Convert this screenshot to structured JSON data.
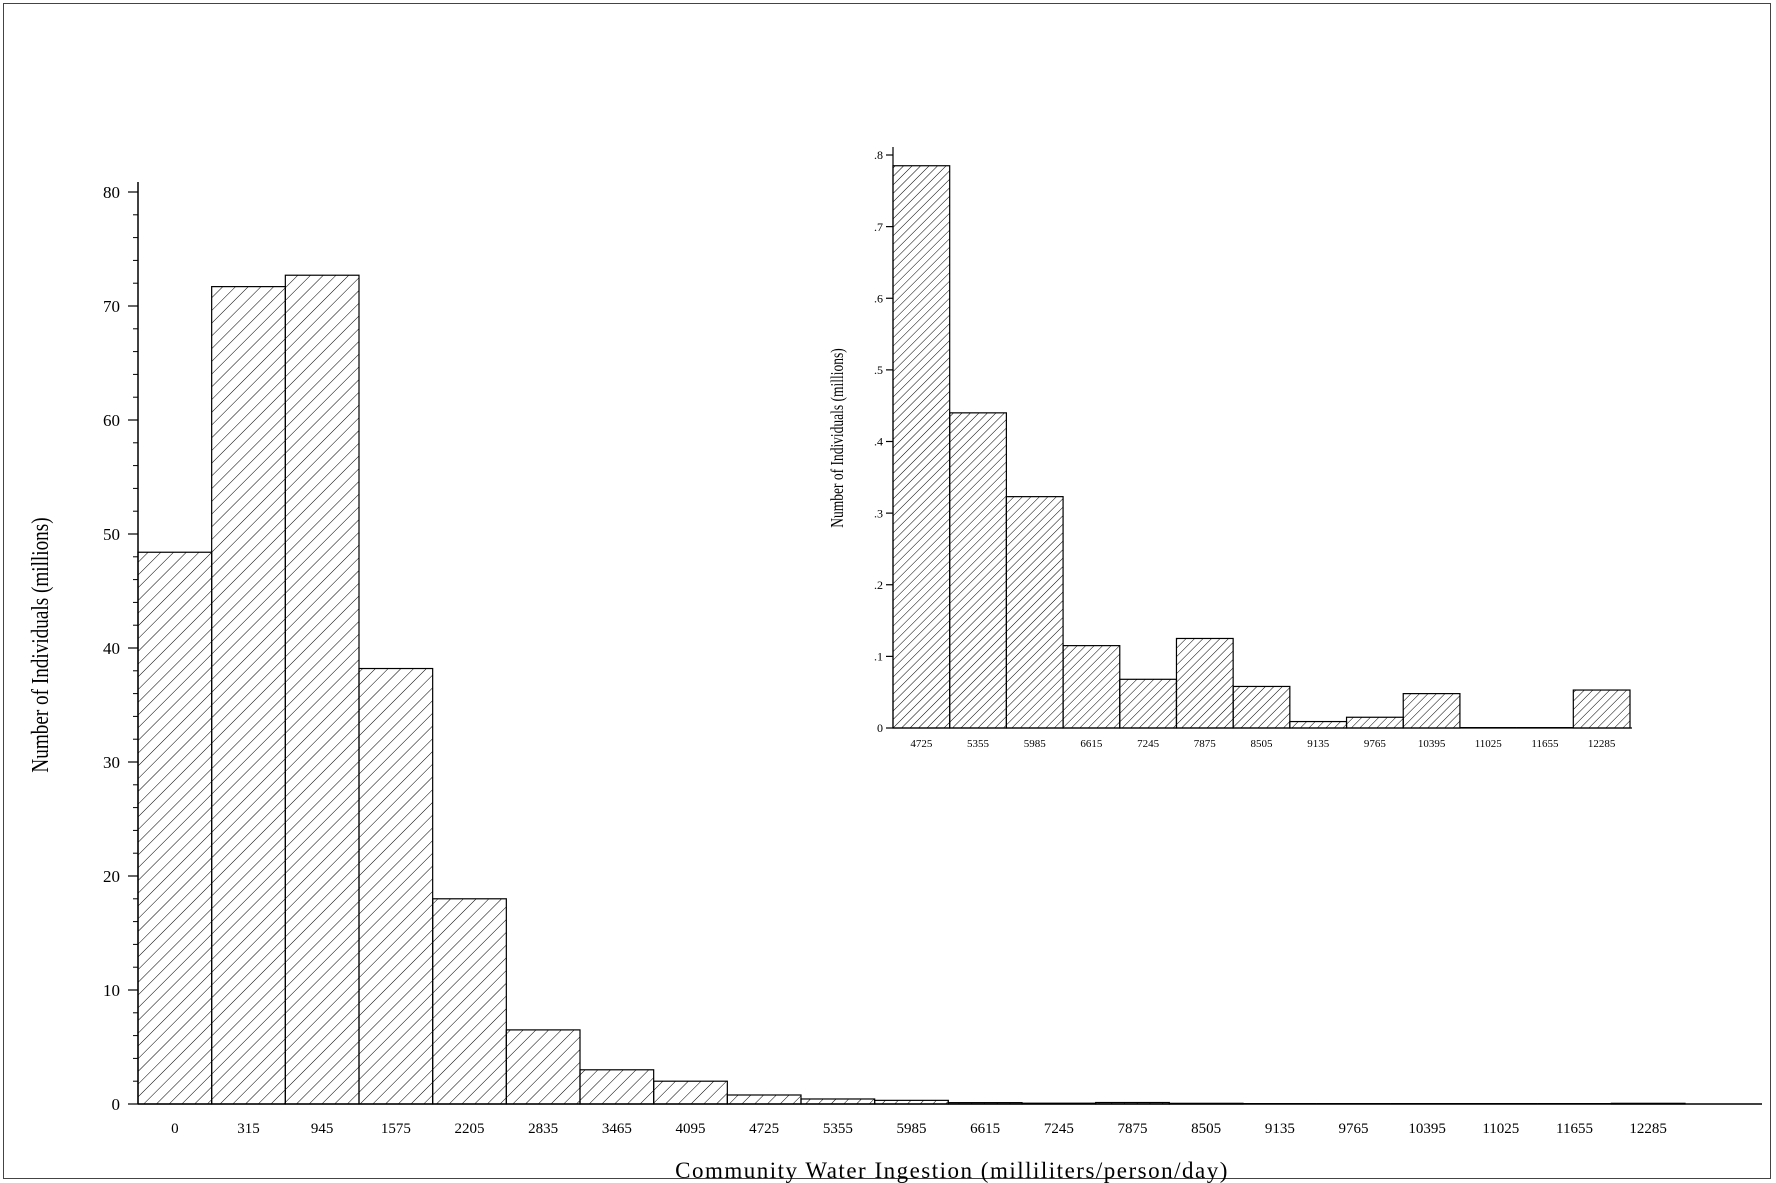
{
  "chart_data": [
    {
      "type": "bar",
      "title": "",
      "xlabel": "Community Water Ingestion (milliliters/person/day)",
      "ylabel": "Number of Individuals (millions)",
      "ylim": [
        0,
        80
      ],
      "yticks": [
        "0",
        "10",
        "20",
        "30",
        "40",
        "50",
        "60",
        "70",
        "80"
      ],
      "categories": [
        "0",
        "315",
        "945",
        "1575",
        "2205",
        "2835",
        "3465",
        "4095",
        "4725",
        "5355",
        "5985",
        "6615",
        "7245",
        "7875",
        "8505",
        "9135",
        "9765",
        "10395",
        "11025",
        "11655",
        "12285"
      ],
      "values": [
        48.4,
        71.7,
        72.7,
        38.2,
        18.0,
        6.5,
        3.0,
        2.0,
        0.79,
        0.44,
        0.32,
        0.12,
        0.07,
        0.13,
        0.06,
        0.01,
        0.02,
        0.05,
        0.0,
        0.0,
        0.06
      ],
      "grid": false,
      "pattern": "diagonal-hatch"
    },
    {
      "type": "bar",
      "title": "",
      "xlabel": "",
      "ylabel": "Number of Individuals (millions)",
      "ylim": [
        0,
        0.8
      ],
      "yticks": [
        "0",
        ".1",
        ".2",
        ".3",
        ".4",
        ".5",
        ".6",
        ".7",
        ".8"
      ],
      "categories": [
        "4725",
        "5355",
        "5985",
        "6615",
        "7245",
        "7875",
        "8505",
        "9135",
        "9765",
        "10395",
        "11025",
        "11655",
        "12285"
      ],
      "values": [
        0.785,
        0.44,
        0.323,
        0.115,
        0.068,
        0.125,
        0.058,
        0.009,
        0.015,
        0.048,
        0.0,
        0.0,
        0.053
      ],
      "grid": false,
      "pattern": "diagonal-hatch"
    }
  ]
}
